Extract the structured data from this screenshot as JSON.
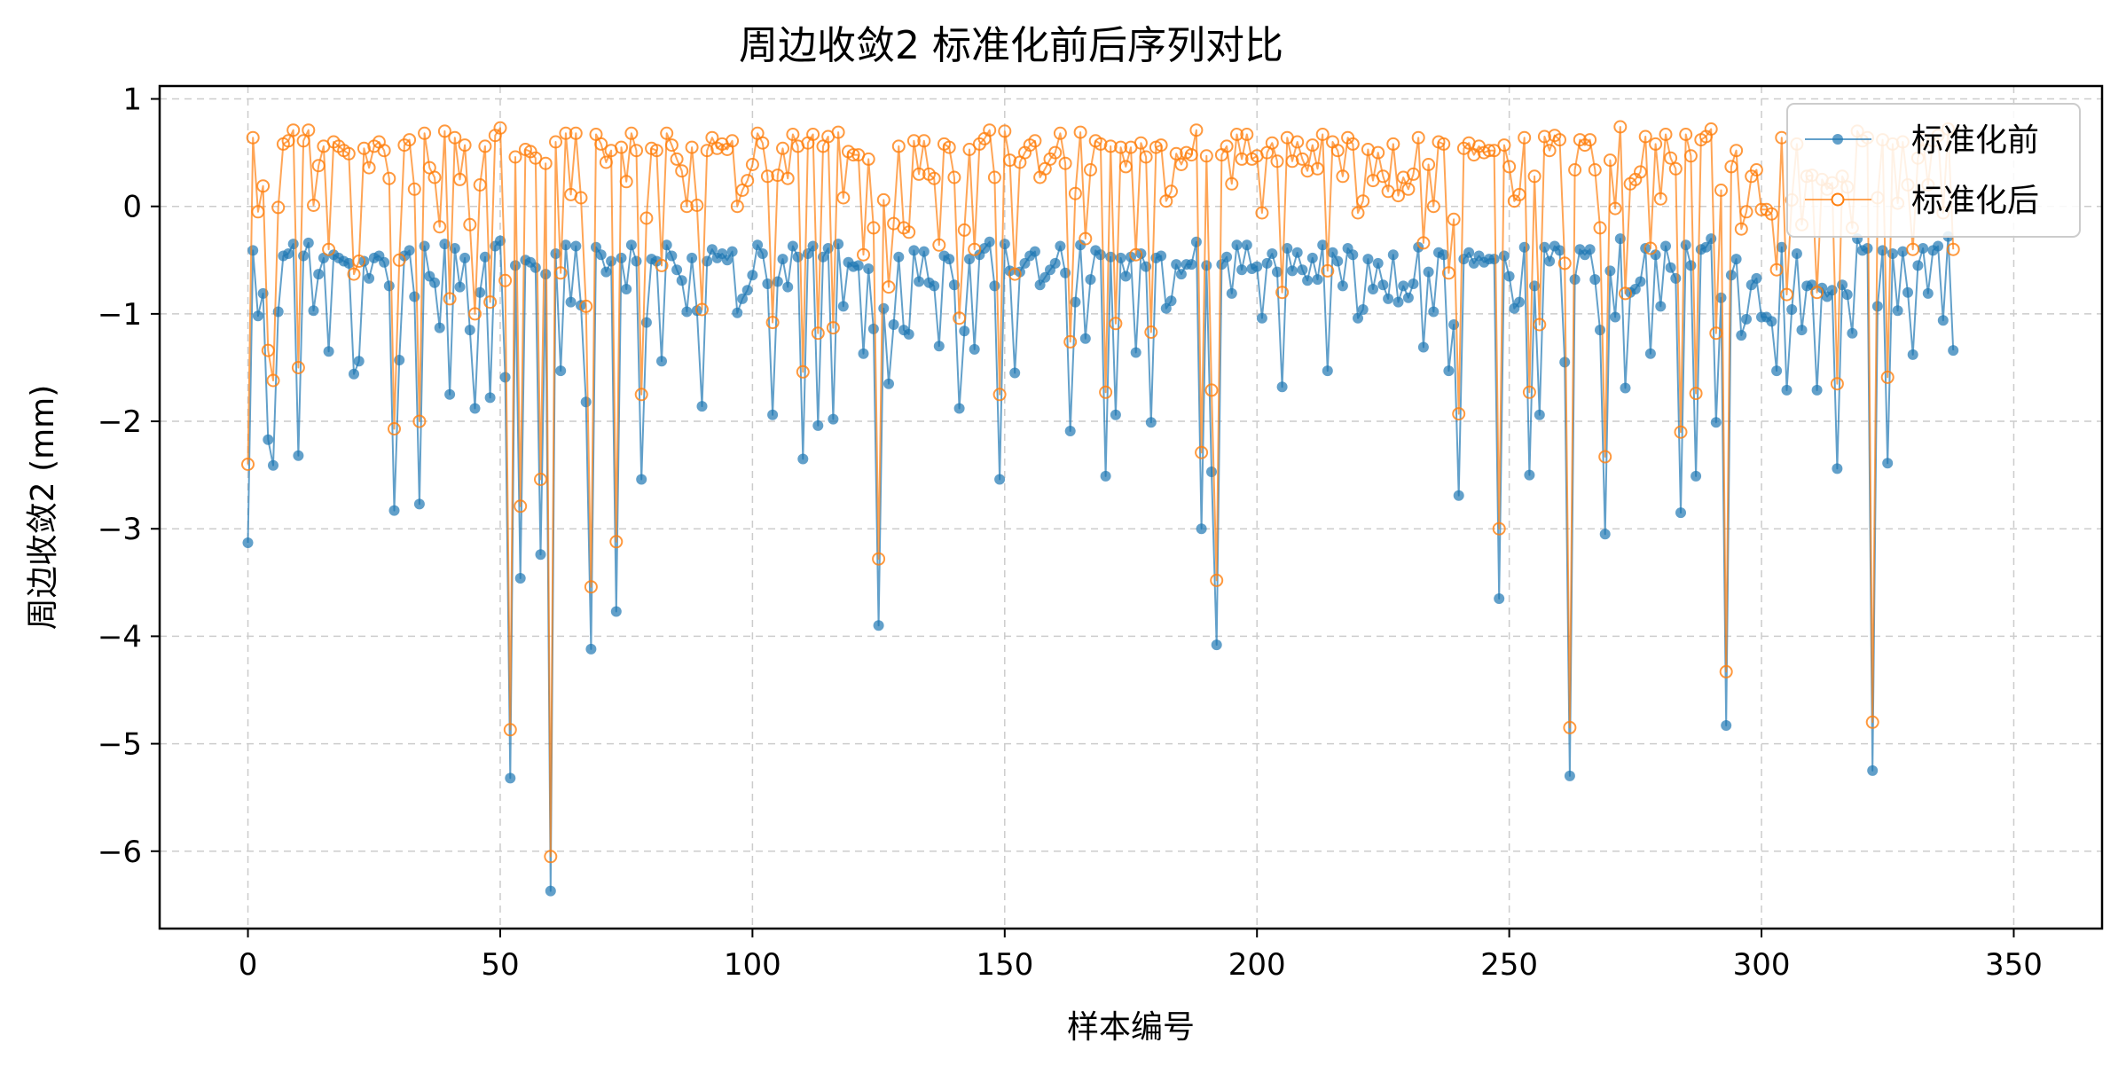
{
  "chart_data": {
    "type": "line",
    "title": "周边收敛2 标准化前后序列对比",
    "xlabel": "样本编号",
    "ylabel": "周边收敛2 (mm)",
    "xlim": [
      -17.5,
      367.5
    ],
    "ylim": [
      -6.72,
      1.12
    ],
    "xticks": [
      0,
      50,
      100,
      150,
      200,
      250,
      300,
      350
    ],
    "xtick_labels": [
      "0",
      "50",
      "100",
      "150",
      "200",
      "250",
      "300",
      "350"
    ],
    "yticks": [
      -6,
      -5,
      -4,
      -3,
      -2,
      -1,
      0,
      1
    ],
    "ytick_labels": [
      "−6",
      "−5",
      "−4",
      "−3",
      "−2",
      "−1",
      "0",
      "1"
    ],
    "grid": true,
    "legend_position": "top-right",
    "colors": {
      "before": "#1f77b4",
      "after": "#ff7f0e",
      "grid": "#cccccc"
    },
    "x": "0..349 (integer sample index)",
    "series": [
      {
        "name": "标准化前",
        "marker": "filled-circle",
        "values": [
          -3.13,
          -0.41,
          -1.02,
          -0.81,
          -2.17,
          -2.41,
          -0.98,
          -0.46,
          -0.44,
          -0.35,
          -2.32,
          -0.46,
          -0.34,
          -0.97,
          -0.63,
          -0.48,
          -1.35,
          -0.45,
          -0.48,
          -0.51,
          -0.53,
          -1.56,
          -1.44,
          -0.51,
          -0.67,
          -0.48,
          -0.46,
          -0.52,
          -0.74,
          -2.83,
          -1.43,
          -0.46,
          -0.41,
          -0.84,
          -2.77,
          -0.37,
          -0.65,
          -0.71,
          -1.13,
          -0.35,
          -1.75,
          -0.39,
          -0.75,
          -0.48,
          -1.15,
          -1.88,
          -0.8,
          -0.47,
          -1.78,
          -0.37,
          -0.32,
          -1.59,
          -5.32,
          -0.55,
          -3.46,
          -0.5,
          -0.52,
          -0.57,
          -3.24,
          -0.63,
          -6.37,
          -0.44,
          -1.53,
          -0.36,
          -0.89,
          -0.37,
          -0.92,
          -1.82,
          -4.12,
          -0.38,
          -0.45,
          -0.61,
          -0.51,
          -3.77,
          -0.48,
          -0.77,
          -0.36,
          -0.51,
          -2.54,
          -1.08,
          -0.49,
          -0.51,
          -1.44,
          -0.36,
          -0.46,
          -0.59,
          -0.69,
          -0.98,
          -0.48,
          -0.97,
          -1.86,
          -0.51,
          -0.4,
          -0.48,
          -0.44,
          -0.5,
          -0.42,
          -0.99,
          -0.86,
          -0.78,
          -0.64,
          -0.36,
          -0.44,
          -0.72,
          -1.94,
          -0.7,
          -0.49,
          -0.75,
          -0.37,
          -0.47,
          -2.35,
          -0.44,
          -0.37,
          -2.04,
          -0.47,
          -0.39,
          -1.98,
          -0.35,
          -0.93,
          -0.52,
          -0.56,
          -0.55,
          -1.37,
          -0.58,
          -1.14,
          -3.9,
          -0.95,
          -1.65,
          -1.1,
          -0.47,
          -1.15,
          -1.19,
          -0.41,
          -0.7,
          -0.42,
          -0.71,
          -0.74,
          -1.3,
          -0.46,
          -0.49,
          -0.73,
          -1.88,
          -1.16,
          -0.49,
          -1.33,
          -0.45,
          -0.39,
          -0.33,
          -0.74,
          -2.54,
          -0.35,
          -0.6,
          -1.55,
          -0.61,
          -0.53,
          -0.46,
          -0.42,
          -0.73,
          -0.66,
          -0.59,
          -0.53,
          -0.37,
          -0.62,
          -2.09,
          -0.89,
          -0.36,
          -1.23,
          -0.68,
          -0.41,
          -0.45,
          -2.51,
          -0.47,
          -1.94,
          -0.48,
          -0.65,
          -0.47,
          -1.36,
          -0.44,
          -0.56,
          -2.01,
          -0.48,
          -0.46,
          -0.95,
          -0.88,
          -0.54,
          -0.63,
          -0.54,
          -0.54,
          -0.33,
          -3.0,
          -0.55,
          -2.47,
          -4.08,
          -0.54,
          -0.47,
          -0.81,
          -0.36,
          -0.59,
          -0.36,
          -0.58,
          -0.56,
          -1.04,
          -0.53,
          -0.44,
          -0.61,
          -1.68,
          -0.39,
          -0.6,
          -0.43,
          -0.59,
          -0.69,
          -0.48,
          -0.68,
          -0.36,
          -1.53,
          -0.43,
          -0.51,
          -0.74,
          -0.39,
          -0.45,
          -1.04,
          -0.96,
          -0.49,
          -0.77,
          -0.53,
          -0.73,
          -0.86,
          -0.45,
          -0.89,
          -0.74,
          -0.85,
          -0.72,
          -0.38,
          -1.31,
          -0.61,
          -0.98,
          -0.43,
          -0.45,
          -1.53,
          -1.1,
          -2.69,
          -0.49,
          -0.43,
          -0.53,
          -0.46,
          -0.52,
          -0.49,
          -0.49,
          -3.65,
          -0.46,
          -0.65,
          -0.95,
          -0.89,
          -0.38,
          -2.5,
          -0.74,
          -1.94,
          -0.38,
          -0.51,
          -0.37,
          -0.41,
          -1.45,
          -5.3,
          -0.68,
          -0.4,
          -0.45,
          -0.4,
          -0.68,
          -1.15,
          -3.05,
          -0.6,
          -1.03,
          -0.3,
          -1.69,
          -0.8,
          -0.77,
          -0.7,
          -0.39,
          -1.37,
          -0.45,
          -0.93,
          -0.37,
          -0.57,
          -0.67,
          -2.85,
          -0.36,
          -0.55,
          -2.51,
          -0.4,
          -0.38,
          -0.3,
          -2.01,
          -0.85,
          -4.83,
          -0.64,
          -0.49,
          -1.2,
          -1.05,
          -0.73,
          -0.67,
          -1.03,
          -1.03,
          -1.07,
          -1.53,
          -0.38,
          -1.71,
          -0.96,
          -0.44,
          -1.15,
          -0.74,
          -0.73,
          -1.71,
          -0.76,
          -0.84,
          -0.78,
          -2.44,
          -0.73,
          -0.82,
          -1.18,
          -0.3,
          -0.41,
          -0.39,
          -5.25,
          -0.93,
          -0.41,
          -2.39,
          -0.44,
          -0.97,
          -0.42,
          -0.8,
          -1.38,
          -0.55,
          -0.39,
          -0.81,
          -0.41,
          -0.37,
          -1.06,
          -0.28,
          -1.34
        ]
      },
      {
        "name": "标准化后",
        "marker": "open-circle",
        "values": [
          -2.4,
          0.64,
          -0.05,
          0.19,
          -1.34,
          -1.62,
          -0.01,
          0.58,
          0.61,
          0.71,
          -1.5,
          0.61,
          0.71,
          0.01,
          0.38,
          0.56,
          -0.4,
          0.6,
          0.56,
          0.52,
          0.49,
          -0.63,
          -0.51,
          0.54,
          0.36,
          0.56,
          0.6,
          0.52,
          0.26,
          -2.07,
          -0.5,
          0.57,
          0.62,
          0.16,
          -2.0,
          0.68,
          0.36,
          0.27,
          -0.19,
          0.7,
          -0.86,
          0.64,
          0.25,
          0.57,
          -0.17,
          -1.0,
          0.2,
          0.56,
          -0.89,
          0.66,
          0.73,
          -0.69,
          -4.87,
          0.46,
          -2.79,
          0.53,
          0.51,
          0.45,
          -2.54,
          0.4,
          -6.05,
          0.6,
          -0.62,
          0.68,
          0.11,
          0.68,
          0.08,
          -0.93,
          -3.54,
          0.67,
          0.58,
          0.41,
          0.52,
          -3.12,
          0.55,
          0.23,
          0.68,
          0.52,
          -1.75,
          -0.11,
          0.54,
          0.52,
          -0.55,
          0.68,
          0.57,
          0.44,
          0.33,
          0.0,
          0.55,
          0.01,
          -0.96,
          0.52,
          0.64,
          0.54,
          0.58,
          0.53,
          0.61,
          0.0,
          0.15,
          0.24,
          0.39,
          0.68,
          0.59,
          0.28,
          -1.08,
          0.29,
          0.54,
          0.26,
          0.67,
          0.56,
          -1.54,
          0.59,
          0.67,
          -1.18,
          0.56,
          0.65,
          -1.13,
          0.69,
          0.08,
          0.51,
          0.48,
          0.48,
          -0.45,
          0.44,
          -0.2,
          -3.28,
          0.06,
          -0.75,
          -0.16,
          0.56,
          -0.2,
          -0.24,
          0.61,
          0.3,
          0.61,
          0.3,
          0.26,
          -0.36,
          0.58,
          0.55,
          0.27,
          -1.04,
          -0.22,
          0.53,
          -0.4,
          0.58,
          0.63,
          0.71,
          0.27,
          -1.75,
          0.7,
          0.43,
          -0.63,
          0.41,
          0.5,
          0.57,
          0.61,
          0.27,
          0.35,
          0.44,
          0.5,
          0.68,
          0.4,
          -1.26,
          0.12,
          0.69,
          -0.3,
          0.34,
          0.61,
          0.58,
          -1.73,
          0.56,
          -1.09,
          0.55,
          0.37,
          0.55,
          -0.45,
          0.59,
          0.46,
          -1.17,
          0.55,
          0.57,
          0.05,
          0.14,
          0.49,
          0.39,
          0.5,
          0.48,
          0.71,
          -2.29,
          0.47,
          -1.71,
          -3.48,
          0.48,
          0.56,
          0.21,
          0.67,
          0.44,
          0.67,
          0.44,
          0.47,
          -0.06,
          0.5,
          0.59,
          0.42,
          -0.8,
          0.64,
          0.42,
          0.6,
          0.44,
          0.33,
          0.57,
          0.35,
          0.67,
          -0.6,
          0.6,
          0.52,
          0.28,
          0.64,
          0.58,
          -0.06,
          0.05,
          0.53,
          0.24,
          0.5,
          0.28,
          0.14,
          0.58,
          0.1,
          0.27,
          0.16,
          0.3,
          0.64,
          -0.34,
          0.39,
          0.0,
          0.6,
          0.58,
          -0.62,
          -0.12,
          -1.93,
          0.54,
          0.59,
          0.48,
          0.56,
          0.5,
          0.52,
          0.52,
          -3.0,
          0.57,
          0.37,
          0.05,
          0.11,
          0.64,
          -1.73,
          0.28,
          -1.1,
          0.65,
          0.52,
          0.66,
          0.62,
          -0.53,
          -4.85,
          0.34,
          0.62,
          0.57,
          0.62,
          0.34,
          -0.2,
          -2.33,
          0.43,
          -0.02,
          0.74,
          -0.81,
          0.21,
          0.25,
          0.32,
          0.65,
          -0.39,
          0.58,
          0.07,
          0.67,
          0.45,
          0.35,
          -2.1,
          0.67,
          0.47,
          -1.74,
          0.62,
          0.65,
          0.72,
          -1.18,
          0.15,
          -4.33,
          0.37,
          0.52,
          -0.21,
          -0.05,
          0.28,
          0.34,
          -0.03,
          -0.03,
          -0.07,
          -0.59,
          0.64,
          -0.82,
          0.06,
          0.58,
          -0.17,
          0.28,
          0.29,
          -0.8,
          0.25,
          0.16,
          0.22,
          -1.65,
          0.28,
          0.18,
          -0.2,
          0.7,
          0.61,
          0.64,
          -4.8,
          0.08,
          0.62,
          -1.59,
          0.58,
          0.03,
          0.6,
          0.2,
          -0.4,
          0.45,
          0.62,
          0.2,
          0.61,
          0.66,
          -0.06,
          0.72,
          -0.4
        ]
      }
    ]
  }
}
